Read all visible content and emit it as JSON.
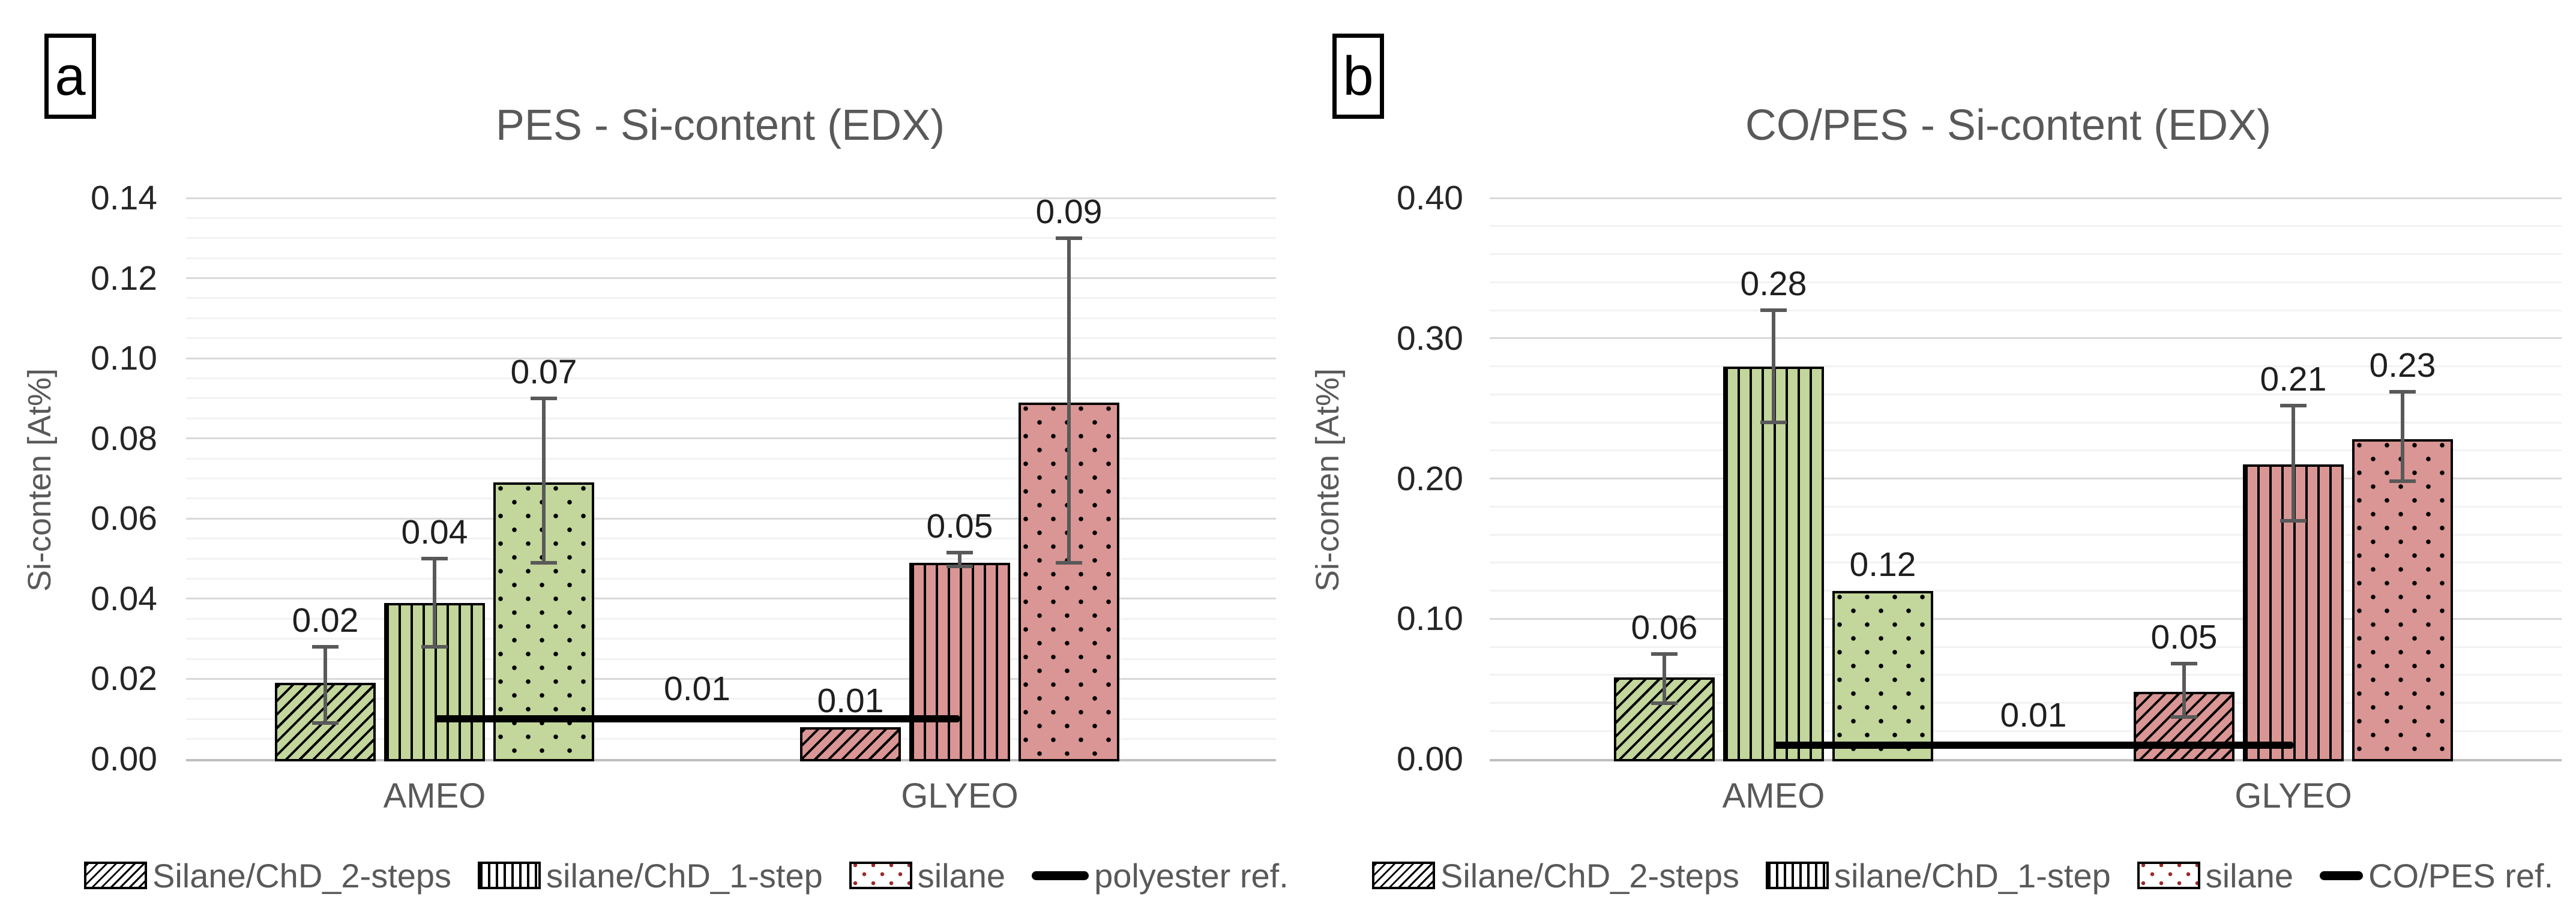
{
  "page": {
    "background": "#ffffff"
  },
  "colors": {
    "green_fill": "#c3d69b",
    "red_fill": "#d99694",
    "bar_border": "#000000",
    "error_bar": "#595959",
    "ref_line": "#000000",
    "title_text": "#595959",
    "axis_text": "#262626",
    "category_text": "#595959",
    "gridline_major": "#d9d9d9",
    "gridline_minor": "#f2f2f2",
    "axis_line": "#bfbfbf",
    "legend_dot": "#9c2a2a"
  },
  "chart_data": [
    {
      "type": "bar",
      "corner_label": "a",
      "title": "PES - Si-content (EDX)",
      "ylabel": "Si-conten [At%]",
      "xlabel": "",
      "categories": [
        "AMEO",
        "GLYEO"
      ],
      "ylim": [
        0,
        0.14
      ],
      "ytick_step": 0.02,
      "minor_step": 0.005,
      "yticks": [
        0,
        0.02,
        0.04,
        0.06,
        0.08,
        0.1,
        0.12,
        0.14
      ],
      "ytick_labels": [
        "0.00",
        "0.02",
        "0.04",
        "0.06",
        "0.08",
        "0.10",
        "0.12",
        "0.14"
      ],
      "grid": true,
      "legend_position": "bottom",
      "group_fills": [
        "#c3d69b",
        "#d99694"
      ],
      "series": [
        {
          "name": "Silane/ChD_2-steps",
          "pattern": "diagonal-hatch",
          "values": [
            0.02,
            0.01
          ],
          "bar_heights": [
            0.019,
            0.008
          ],
          "data_labels": [
            "0.02",
            "0.01"
          ],
          "error_ranges": [
            [
              0.009,
              0.028
            ],
            null
          ]
        },
        {
          "name": "silane/ChD_1-step",
          "pattern": "vertical-lines",
          "values": [
            0.04,
            0.05
          ],
          "bar_heights": [
            0.039,
            0.049
          ],
          "data_labels": [
            "0.04",
            "0.05"
          ],
          "error_ranges": [
            [
              0.028,
              0.05
            ],
            [
              0.048,
              0.0515
            ]
          ]
        },
        {
          "name": "silane",
          "pattern": "dots",
          "values": [
            0.07,
            0.09
          ],
          "bar_heights": [
            0.069,
            0.089
          ],
          "data_labels": [
            "0.07",
            "0.09"
          ],
          "error_ranges": [
            [
              0.049,
              0.09
            ],
            [
              0.049,
              0.13
            ]
          ]
        }
      ],
      "ref_line": {
        "value": 0.01,
        "label": "0.01",
        "legend_label": "polyester ref."
      }
    },
    {
      "type": "bar",
      "corner_label": "b",
      "title": "CO/PES - Si-content (EDX)",
      "ylabel": "Si-conten [At%]",
      "xlabel": "",
      "categories": [
        "AMEO",
        "GLYEO"
      ],
      "ylim": [
        0,
        0.4
      ],
      "ytick_step": 0.1,
      "minor_step": 0.02,
      "yticks": [
        0,
        0.1,
        0.2,
        0.3,
        0.4
      ],
      "ytick_labels": [
        "0.00",
        "0.10",
        "0.20",
        "0.30",
        "0.40"
      ],
      "grid": true,
      "legend_position": "bottom",
      "group_fills": [
        "#c3d69b",
        "#d99694"
      ],
      "series": [
        {
          "name": "Silane/ChD_2-steps",
          "pattern": "diagonal-hatch",
          "values": [
            0.06,
            0.05
          ],
          "bar_heights": [
            0.058,
            0.048
          ],
          "data_labels": [
            "0.06",
            "0.05"
          ],
          "error_ranges": [
            [
              0.04,
              0.075
            ],
            [
              0.03,
              0.068
            ]
          ]
        },
        {
          "name": "silane/ChD_1-step",
          "pattern": "vertical-lines",
          "values": [
            0.28,
            0.21
          ],
          "bar_heights": [
            0.28,
            0.21
          ],
          "data_labels": [
            "0.28",
            "0.21"
          ],
          "error_ranges": [
            [
              0.24,
              0.32
            ],
            [
              0.17,
              0.252
            ]
          ]
        },
        {
          "name": "silane",
          "pattern": "dots",
          "values": [
            0.12,
            0.23
          ],
          "bar_heights": [
            0.12,
            0.228
          ],
          "data_labels": [
            "0.12",
            "0.23"
          ],
          "error_ranges": [
            null,
            [
              0.198,
              0.262
            ]
          ]
        }
      ],
      "ref_line": {
        "value": 0.01,
        "label": "0.01",
        "legend_label": "CO/PES ref."
      }
    }
  ]
}
